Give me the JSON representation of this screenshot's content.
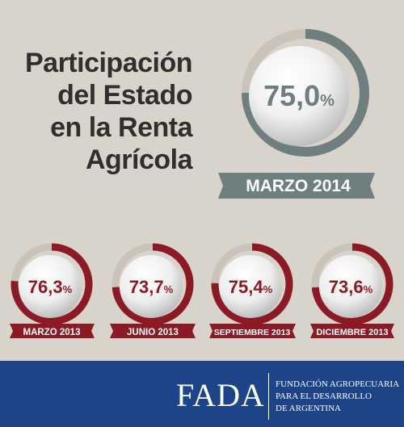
{
  "title_lines": [
    "Participación",
    "del Estado",
    "en la Renta",
    "Agrícola"
  ],
  "main": {
    "value": "75,0",
    "pct": "%",
    "date": "MARZO 2014",
    "fill": 0.75
  },
  "items": [
    {
      "value": "76,3",
      "pct": "%",
      "date": "MARZO 2013",
      "fill": 0.763
    },
    {
      "value": "73,7",
      "pct": "%",
      "date": "JUNIO 2013",
      "fill": 0.737
    },
    {
      "value": "75,4",
      "pct": "%",
      "date": "SEPTIEMBRE 2013",
      "fill": 0.754
    },
    {
      "value": "73,6",
      "pct": "%",
      "date": "DICIEMBRE 2013",
      "fill": 0.736
    }
  ],
  "footer": {
    "logo": "FADA",
    "name_lines": [
      "FUNDACIÓN AGROPECUARIA",
      "PARA EL DESARROLLO",
      "DE ARGENTINA"
    ]
  },
  "colors": {
    "main_ring": "#6f7f80",
    "small_ring": "#8c1a24",
    "ribbon_main": "#6f7f80",
    "ribbon_small": "#8c1a24",
    "footer": "#1d4489",
    "background": "#d9d4cb"
  }
}
